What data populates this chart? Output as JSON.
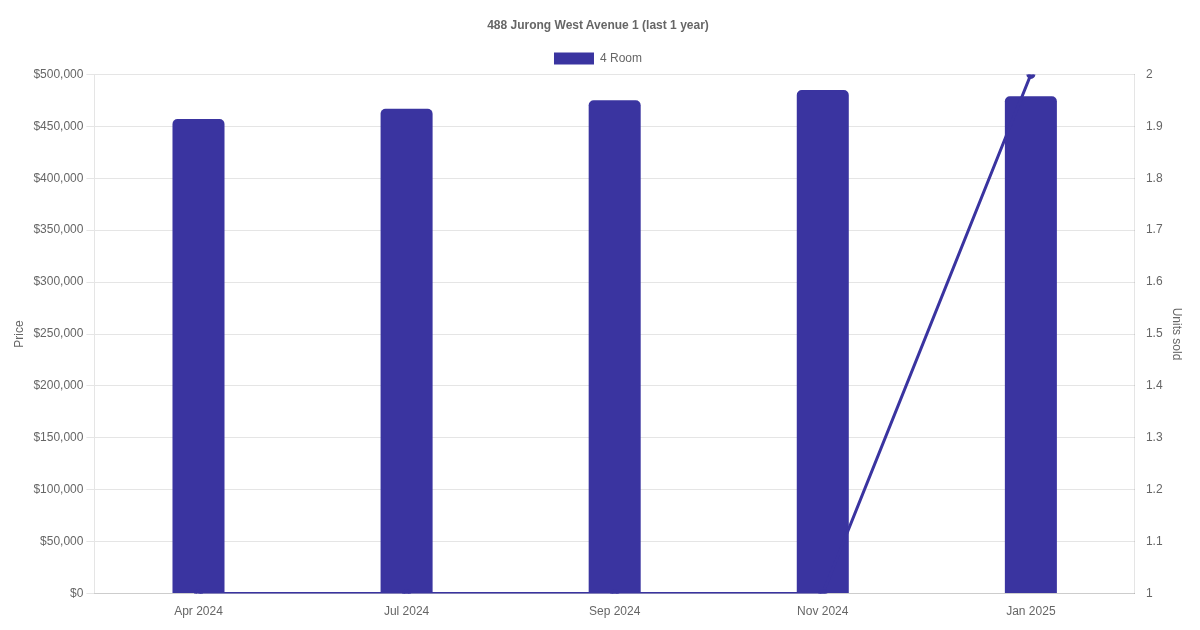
{
  "chart_data": {
    "type": "bar",
    "title": "488 Jurong West Avenue 1 (last 1 year)",
    "categories": [
      "Apr 2024",
      "Jul 2024",
      "Sep 2024",
      "Nov 2024",
      "Jan 2025"
    ],
    "series": [
      {
        "name": "4 Room",
        "color": "#3a34a0",
        "values": [
          457000,
          467000,
          475000,
          485000,
          479000
        ]
      },
      {
        "type": "line",
        "axis": "y2",
        "color": "#3a34a0",
        "values": [
          1,
          1,
          1,
          1,
          2
        ],
        "marker": "circle",
        "line_style": "solid"
      }
    ],
    "ylabel": "Price",
    "y2label": "Units sold",
    "ylim": [
      0,
      500000
    ],
    "yticks": [
      {
        "value": 0,
        "label": "$0"
      },
      {
        "value": 50000,
        "label": "$50,000"
      },
      {
        "value": 100000,
        "label": "$100,000"
      },
      {
        "value": 150000,
        "label": "$150,000"
      },
      {
        "value": 200000,
        "label": "$200,000"
      },
      {
        "value": 250000,
        "label": "$250,000"
      },
      {
        "value": 300000,
        "label": "$300,000"
      },
      {
        "value": 350000,
        "label": "$350,000"
      },
      {
        "value": 400000,
        "label": "$400,000"
      },
      {
        "value": 450000,
        "label": "$450,000"
      },
      {
        "value": 500000,
        "label": "$500,000"
      }
    ],
    "y2lim": [
      1,
      2
    ],
    "y2ticks": [
      1,
      1.1,
      1.2,
      1.3,
      1.4,
      1.5,
      1.6,
      1.7,
      1.8,
      1.9,
      2
    ],
    "grid": "y",
    "legend": "top"
  }
}
